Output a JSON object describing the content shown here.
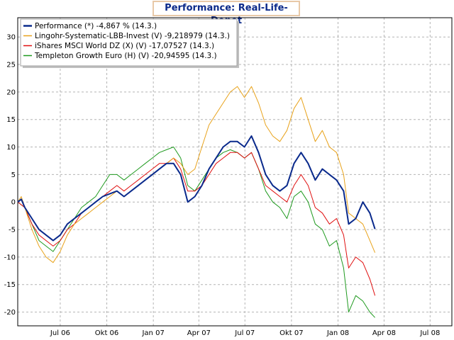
{
  "chart_data": {
    "type": "line",
    "title": "Performance: Real-Life-Depot",
    "xlabel": "",
    "ylabel": "",
    "ylim": [
      -22.5,
      33.5
    ],
    "xlim": [
      "2006-04-08",
      "2008-08-13"
    ],
    "grid": true,
    "legend_position": "top-left",
    "y_ticks": [
      -20,
      -15,
      -10,
      -5,
      0,
      5,
      10,
      15,
      20,
      25,
      30
    ],
    "x_ticks": [
      {
        "date": "2006-07-01",
        "label": "Jul 06"
      },
      {
        "date": "2006-10-01",
        "label": "Okt 06"
      },
      {
        "date": "2007-01-01",
        "label": "Jan 07"
      },
      {
        "date": "2007-04-01",
        "label": "Apr 07"
      },
      {
        "date": "2007-07-01",
        "label": "Jul 07"
      },
      {
        "date": "2007-10-01",
        "label": "Okt 07"
      },
      {
        "date": "2008-01-01",
        "label": "Jan 08"
      },
      {
        "date": "2008-04-01",
        "label": "Apr 08"
      },
      {
        "date": "2008-07-01",
        "label": "Jul 08"
      }
    ],
    "series": [
      {
        "name": "Templeton Growth Euro (H) (V) -20,94595 (14.3.)",
        "color": "#1f9a1f",
        "width": 1,
        "points": [
          [
            "2006-04-08",
            0
          ],
          [
            "2006-04-22",
            -1
          ],
          [
            "2006-05-06",
            -4
          ],
          [
            "2006-05-20",
            -7
          ],
          [
            "2006-06-03",
            -8
          ],
          [
            "2006-06-17",
            -9
          ],
          [
            "2006-07-01",
            -7
          ],
          [
            "2006-07-15",
            -5
          ],
          [
            "2006-07-29",
            -3
          ],
          [
            "2006-08-12",
            -1
          ],
          [
            "2006-08-26",
            0
          ],
          [
            "2006-09-09",
            1
          ],
          [
            "2006-09-23",
            3
          ],
          [
            "2006-10-07",
            5
          ],
          [
            "2006-10-21",
            5
          ],
          [
            "2006-11-04",
            4
          ],
          [
            "2006-11-18",
            5
          ],
          [
            "2006-12-02",
            6
          ],
          [
            "2006-12-16",
            7
          ],
          [
            "2006-12-30",
            8
          ],
          [
            "2007-01-13",
            9
          ],
          [
            "2007-01-27",
            9.5
          ],
          [
            "2007-02-10",
            10
          ],
          [
            "2007-02-24",
            8
          ],
          [
            "2007-03-10",
            3
          ],
          [
            "2007-03-24",
            2
          ],
          [
            "2007-04-07",
            4
          ],
          [
            "2007-04-21",
            6
          ],
          [
            "2007-05-05",
            8
          ],
          [
            "2007-05-19",
            9
          ],
          [
            "2007-06-02",
            9.5
          ],
          [
            "2007-06-16",
            9
          ],
          [
            "2007-06-30",
            8
          ],
          [
            "2007-07-14",
            9
          ],
          [
            "2007-07-28",
            6
          ],
          [
            "2007-08-11",
            2
          ],
          [
            "2007-08-25",
            0
          ],
          [
            "2007-09-08",
            -1
          ],
          [
            "2007-09-22",
            -3
          ],
          [
            "2007-10-06",
            1
          ],
          [
            "2007-10-20",
            2
          ],
          [
            "2007-11-03",
            0
          ],
          [
            "2007-11-17",
            -4
          ],
          [
            "2007-12-01",
            -5
          ],
          [
            "2007-12-15",
            -8
          ],
          [
            "2007-12-29",
            -7
          ],
          [
            "2008-01-12",
            -12
          ],
          [
            "2008-01-22",
            -20
          ],
          [
            "2008-02-05",
            -17
          ],
          [
            "2008-02-19",
            -18
          ],
          [
            "2008-03-04",
            -20
          ],
          [
            "2008-03-14",
            -21
          ]
        ]
      },
      {
        "name": "iShares MSCI World DZ (X) (V) -17,07527 (14.3.)",
        "color": "#e01010",
        "width": 1,
        "points": [
          [
            "2006-04-08",
            0
          ],
          [
            "2006-04-22",
            -1
          ],
          [
            "2006-05-06",
            -4
          ],
          [
            "2006-05-20",
            -6
          ],
          [
            "2006-06-03",
            -7
          ],
          [
            "2006-06-17",
            -8
          ],
          [
            "2006-07-01",
            -7
          ],
          [
            "2006-07-15",
            -5
          ],
          [
            "2006-07-29",
            -4
          ],
          [
            "2006-08-12",
            -2
          ],
          [
            "2006-08-26",
            -1
          ],
          [
            "2006-09-09",
            0
          ],
          [
            "2006-09-23",
            1
          ],
          [
            "2006-10-07",
            2
          ],
          [
            "2006-10-21",
            3
          ],
          [
            "2006-11-04",
            2
          ],
          [
            "2006-11-18",
            3
          ],
          [
            "2006-12-02",
            4
          ],
          [
            "2006-12-16",
            5
          ],
          [
            "2006-12-30",
            6
          ],
          [
            "2007-01-13",
            7
          ],
          [
            "2007-01-27",
            7
          ],
          [
            "2007-02-10",
            8
          ],
          [
            "2007-02-24",
            6
          ],
          [
            "2007-03-10",
            2
          ],
          [
            "2007-03-24",
            2
          ],
          [
            "2007-04-07",
            3
          ],
          [
            "2007-04-21",
            5
          ],
          [
            "2007-05-05",
            7
          ],
          [
            "2007-05-19",
            8
          ],
          [
            "2007-06-02",
            9
          ],
          [
            "2007-06-16",
            9
          ],
          [
            "2007-06-30",
            8
          ],
          [
            "2007-07-14",
            9
          ],
          [
            "2007-07-28",
            6
          ],
          [
            "2007-08-11",
            3
          ],
          [
            "2007-08-25",
            2
          ],
          [
            "2007-09-08",
            1
          ],
          [
            "2007-09-22",
            0
          ],
          [
            "2007-10-06",
            3
          ],
          [
            "2007-10-20",
            5
          ],
          [
            "2007-11-03",
            3
          ],
          [
            "2007-11-17",
            -1
          ],
          [
            "2007-12-01",
            -2
          ],
          [
            "2007-12-15",
            -4
          ],
          [
            "2007-12-29",
            -3
          ],
          [
            "2008-01-12",
            -6
          ],
          [
            "2008-01-22",
            -12
          ],
          [
            "2008-02-05",
            -10
          ],
          [
            "2008-02-19",
            -11
          ],
          [
            "2008-03-04",
            -14
          ],
          [
            "2008-03-14",
            -17
          ]
        ]
      },
      {
        "name": "Lingohr-Systematic-LBB-Invest (V) -9,218979 (14.3.)",
        "color": "#e8a21a",
        "width": 1,
        "points": [
          [
            "2006-04-08",
            0
          ],
          [
            "2006-04-15",
            1
          ],
          [
            "2006-04-22",
            -1
          ],
          [
            "2006-05-06",
            -5
          ],
          [
            "2006-05-20",
            -8
          ],
          [
            "2006-06-03",
            -10
          ],
          [
            "2006-06-17",
            -11
          ],
          [
            "2006-07-01",
            -9
          ],
          [
            "2006-07-15",
            -6
          ],
          [
            "2006-07-29",
            -4
          ],
          [
            "2006-08-12",
            -3
          ],
          [
            "2006-08-26",
            -2
          ],
          [
            "2006-09-09",
            -1
          ],
          [
            "2006-09-23",
            0
          ],
          [
            "2006-10-07",
            1
          ],
          [
            "2006-10-21",
            2
          ],
          [
            "2006-11-04",
            1
          ],
          [
            "2006-11-18",
            2
          ],
          [
            "2006-12-02",
            3
          ],
          [
            "2006-12-16",
            4
          ],
          [
            "2006-12-30",
            5
          ],
          [
            "2007-01-13",
            6
          ],
          [
            "2007-01-27",
            7
          ],
          [
            "2007-02-10",
            8
          ],
          [
            "2007-02-24",
            7
          ],
          [
            "2007-03-10",
            5
          ],
          [
            "2007-03-24",
            6
          ],
          [
            "2007-04-07",
            10
          ],
          [
            "2007-04-21",
            14
          ],
          [
            "2007-05-05",
            16
          ],
          [
            "2007-05-19",
            18
          ],
          [
            "2007-06-02",
            20
          ],
          [
            "2007-06-16",
            21
          ],
          [
            "2007-06-30",
            19
          ],
          [
            "2007-07-14",
            21
          ],
          [
            "2007-07-28",
            18
          ],
          [
            "2007-08-11",
            14
          ],
          [
            "2007-08-25",
            12
          ],
          [
            "2007-09-08",
            11
          ],
          [
            "2007-09-22",
            13
          ],
          [
            "2007-10-06",
            17
          ],
          [
            "2007-10-20",
            19
          ],
          [
            "2007-11-03",
            15
          ],
          [
            "2007-11-17",
            11
          ],
          [
            "2007-12-01",
            13
          ],
          [
            "2007-12-15",
            10
          ],
          [
            "2007-12-29",
            9
          ],
          [
            "2008-01-12",
            5
          ],
          [
            "2008-01-22",
            -2
          ],
          [
            "2008-02-05",
            -3
          ],
          [
            "2008-02-19",
            -4
          ],
          [
            "2008-03-04",
            -7
          ],
          [
            "2008-03-14",
            -9.2
          ]
        ]
      },
      {
        "name": "Performance (*) -4,867 % (14.3.)",
        "color": "#0a2a8c",
        "width": 2,
        "points": [
          [
            "2006-04-08",
            0
          ],
          [
            "2006-04-15",
            0.5
          ],
          [
            "2006-04-22",
            -1
          ],
          [
            "2006-05-06",
            -3
          ],
          [
            "2006-05-20",
            -5
          ],
          [
            "2006-06-03",
            -6
          ],
          [
            "2006-06-17",
            -7
          ],
          [
            "2006-07-01",
            -6
          ],
          [
            "2006-07-15",
            -4
          ],
          [
            "2006-07-29",
            -3
          ],
          [
            "2006-08-12",
            -2
          ],
          [
            "2006-08-26",
            -1
          ],
          [
            "2006-09-09",
            0
          ],
          [
            "2006-09-23",
            1
          ],
          [
            "2006-10-07",
            1.5
          ],
          [
            "2006-10-21",
            2
          ],
          [
            "2006-11-04",
            1
          ],
          [
            "2006-11-18",
            2
          ],
          [
            "2006-12-02",
            3
          ],
          [
            "2006-12-16",
            4
          ],
          [
            "2006-12-30",
            5
          ],
          [
            "2007-01-13",
            6
          ],
          [
            "2007-01-27",
            7
          ],
          [
            "2007-02-10",
            7
          ],
          [
            "2007-02-24",
            5
          ],
          [
            "2007-03-10",
            0
          ],
          [
            "2007-03-24",
            1
          ],
          [
            "2007-04-07",
            3
          ],
          [
            "2007-04-21",
            6
          ],
          [
            "2007-05-05",
            8
          ],
          [
            "2007-05-19",
            10
          ],
          [
            "2007-06-02",
            11
          ],
          [
            "2007-06-16",
            11
          ],
          [
            "2007-06-30",
            10
          ],
          [
            "2007-07-14",
            12
          ],
          [
            "2007-07-28",
            9
          ],
          [
            "2007-08-11",
            5
          ],
          [
            "2007-08-25",
            3
          ],
          [
            "2007-09-08",
            2
          ],
          [
            "2007-09-22",
            3
          ],
          [
            "2007-10-06",
            7
          ],
          [
            "2007-10-20",
            9
          ],
          [
            "2007-11-03",
            7
          ],
          [
            "2007-11-17",
            4
          ],
          [
            "2007-12-01",
            6
          ],
          [
            "2007-12-15",
            5
          ],
          [
            "2007-12-29",
            4
          ],
          [
            "2008-01-12",
            2
          ],
          [
            "2008-01-22",
            -4
          ],
          [
            "2008-02-05",
            -3
          ],
          [
            "2008-02-19",
            0
          ],
          [
            "2008-03-04",
            -2
          ],
          [
            "2008-03-14",
            -4.9
          ]
        ]
      }
    ],
    "legend_order": [
      3,
      2,
      1,
      0
    ]
  }
}
